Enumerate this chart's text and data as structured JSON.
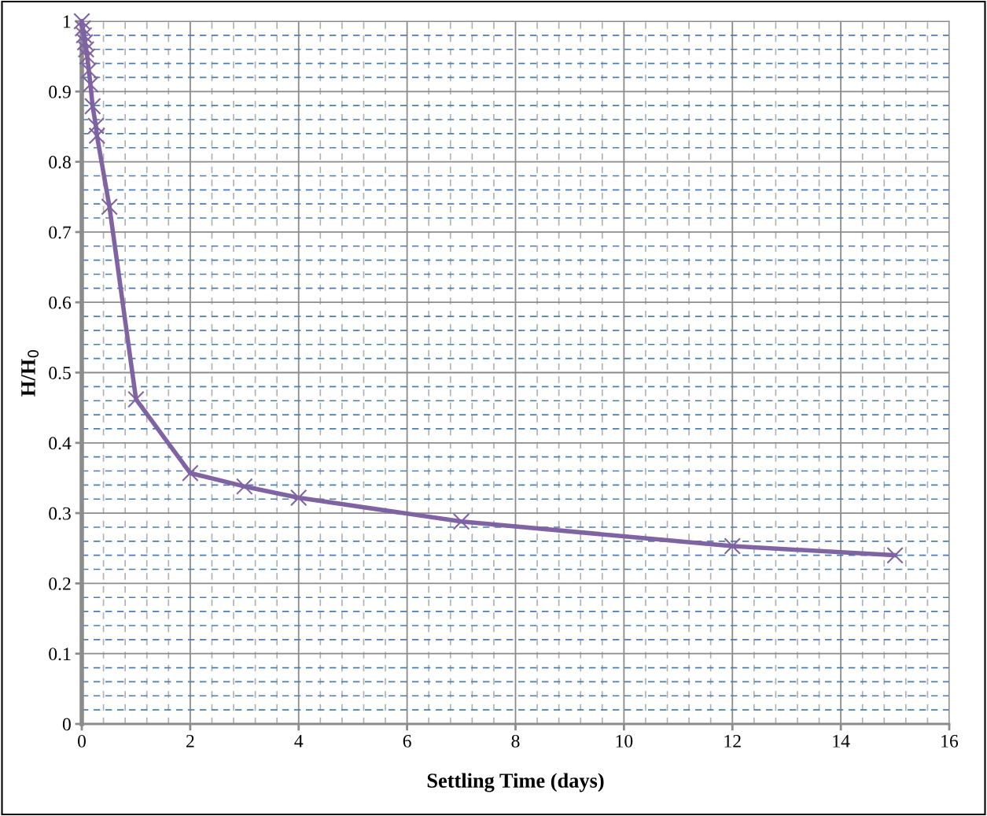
{
  "chart_data": {
    "type": "line",
    "xlabel": "Settling Time (days)",
    "ylabel": "H/H$_{0}$",
    "series": [
      {
        "color": "#7f63a2",
        "x": [
          0,
          0.02,
          0.04,
          0.06,
          0.08,
          0.1,
          0.13,
          0.16,
          0.2,
          0.26,
          0.28,
          0.51,
          1,
          2,
          3,
          4,
          7,
          12,
          15
        ],
        "values": [
          1,
          0.99,
          0.98,
          0.97,
          0.96,
          0.95,
          0.93,
          0.91,
          0.879,
          0.851,
          0.837,
          0.736,
          0.462,
          0.357,
          0.338,
          0.322,
          0.288,
          0.253,
          0.24
        ]
      }
    ],
    "xlim": [
      0,
      16
    ],
    "xticks": [
      0,
      {
        "value": 0.4,
        "label": null
      },
      {
        "value": 0.8,
        "label": null
      },
      {
        "value": 1.2,
        "label": null
      },
      {
        "value": 1.6,
        "label": null
      },
      2,
      {
        "value": 2.4,
        "label": null
      },
      {
        "value": 2.8,
        "label": null
      },
      {
        "value": 3.2,
        "label": null
      },
      {
        "value": 3.6,
        "label": null
      },
      4,
      {
        "value": 4.4,
        "label": null
      },
      {
        "value": 4.8,
        "label": null
      },
      {
        "value": 5.2,
        "label": null
      },
      {
        "value": 5.6,
        "label": null
      },
      6,
      {
        "value": 6.4,
        "label": null
      },
      {
        "value": 6.8,
        "label": null
      },
      {
        "value": 7.2,
        "label": null
      },
      {
        "value": 7.6,
        "label": null
      },
      8,
      {
        "value": 8.4,
        "label": null
      },
      {
        "value": 8.8,
        "label": null
      },
      {
        "value": 9.2,
        "label": null
      },
      {
        "value": 9.6,
        "label": null
      },
      10,
      {
        "value": 10.4,
        "label": null
      },
      {
        "value": 10.8,
        "label": null
      },
      {
        "value": 11.2,
        "label": null
      },
      {
        "value": 11.6,
        "label": null
      },
      12,
      {
        "value": 12.4,
        "label": null
      },
      {
        "value": 12.8,
        "label": null
      },
      {
        "value": 13.2,
        "label": null
      },
      {
        "value": 13.6,
        "label": null
      },
      14,
      {
        "value": 14.4,
        "label": null
      },
      {
        "value": 14.8,
        "label": null
      },
      {
        "value": 15.2,
        "label": null
      },
      {
        "value": 15.6,
        "label": null
      },
      16
    ],
    "ylim": [
      0,
      1
    ],
    "yticks": [
      0,
      {
        "value": 0.02,
        "label": null
      },
      {
        "value": 0.04,
        "label": null
      },
      {
        "value": 0.06,
        "label": null
      },
      {
        "value": 0.08,
        "label": null
      },
      0.1,
      {
        "value": 0.12,
        "label": null
      },
      {
        "value": 0.14,
        "label": null
      },
      {
        "value": 0.16,
        "label": null
      },
      {
        "value": 0.18,
        "label": null
      },
      0.2,
      {
        "value": 0.22,
        "label": null
      },
      {
        "value": 0.24,
        "label": null
      },
      {
        "value": 0.26,
        "label": null
      },
      {
        "value": 0.28,
        "label": null
      },
      0.3,
      {
        "value": 0.32,
        "label": null
      },
      {
        "value": 0.34,
        "label": null
      },
      {
        "value": 0.36,
        "label": null
      },
      {
        "value": 0.38,
        "label": null
      },
      0.4,
      {
        "value": 0.42,
        "label": null
      },
      {
        "value": 0.44,
        "label": null
      },
      {
        "value": 0.46,
        "label": null
      },
      {
        "value": 0.48,
        "label": null
      },
      0.5,
      {
        "value": 0.52,
        "label": null
      },
      {
        "value": 0.54,
        "label": null
      },
      {
        "value": 0.56,
        "label": null
      },
      {
        "value": 0.58,
        "label": null
      },
      0.6,
      {
        "value": 0.62,
        "label": null
      },
      {
        "value": 0.64,
        "label": null
      },
      {
        "value": 0.66,
        "label": null
      },
      {
        "value": 0.68,
        "label": null
      },
      0.7,
      {
        "value": 0.72,
        "label": null
      },
      {
        "value": 0.74,
        "label": null
      },
      {
        "value": 0.76,
        "label": null
      },
      {
        "value": 0.78,
        "label": null
      },
      0.8,
      {
        "value": 0.82,
        "label": null
      },
      {
        "value": 0.84,
        "label": null
      },
      {
        "value": 0.86,
        "label": null
      },
      {
        "value": 0.88,
        "label": null
      },
      0.9,
      {
        "value": 0.92,
        "label": null
      },
      {
        "value": 0.94,
        "label": null
      },
      {
        "value": 0.96,
        "label": null
      },
      {
        "value": 0.98,
        "label": null
      },
      1
    ],
    "grid": true,
    "marker": "cross",
    "line_style": "solid"
  }
}
